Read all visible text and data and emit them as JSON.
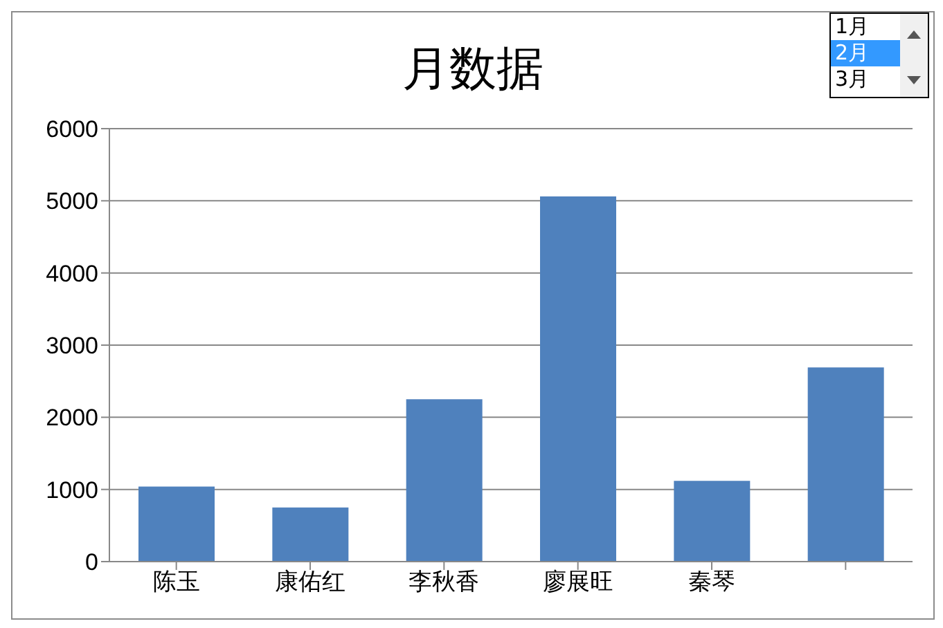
{
  "chart_data": {
    "type": "bar",
    "title": "月数据",
    "categories": [
      "陈玉",
      "康佑红",
      "李秋香",
      "廖展旺",
      "秦琴",
      null
    ],
    "values": [
      1040,
      750,
      2250,
      5060,
      1120,
      2690
    ],
    "color": "#4f81bd",
    "ylim": [
      0,
      6000
    ],
    "yticks": [
      0,
      1000,
      2000,
      3000,
      4000,
      5000,
      6000
    ],
    "grid": "y",
    "annotations": [
      "1月",
      "2月",
      "3月"
    ]
  }
}
